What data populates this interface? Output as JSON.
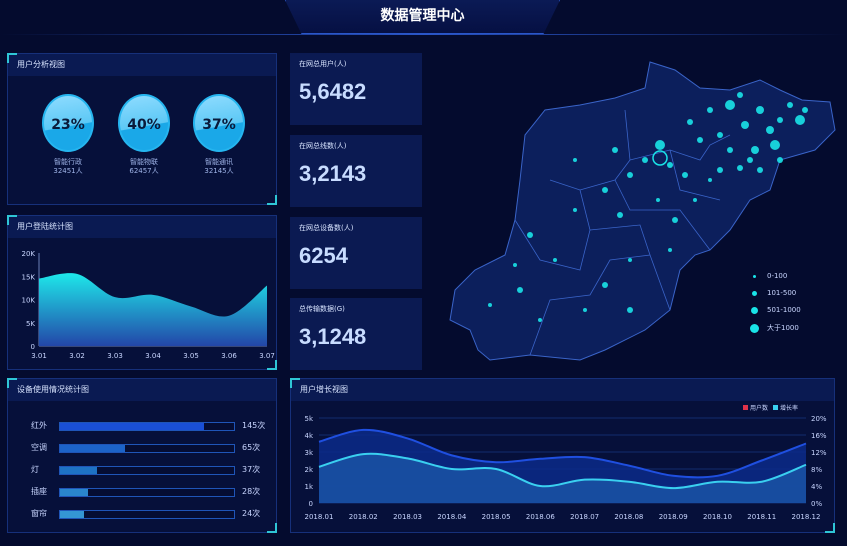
{
  "title": "数据管理中心",
  "user_analysis": {
    "title": "用户分析视图",
    "items": [
      {
        "pct": "23%",
        "name": "智能行政",
        "count": "32451人"
      },
      {
        "pct": "40%",
        "name": "智能物联",
        "count": "62457人"
      },
      {
        "pct": "37%",
        "name": "智能通讯",
        "count": "32145人"
      }
    ]
  },
  "stats": [
    {
      "label": "在网总用户(人)",
      "value": "5,6482"
    },
    {
      "label": "在网总线数(人)",
      "value": "3,2143"
    },
    {
      "label": "在网总设备数(人)",
      "value": "6254"
    },
    {
      "label": "总传输数据(G)",
      "value": "3,1248"
    }
  ],
  "map": {
    "legend": [
      "0-100",
      "101-500",
      "501-1000",
      "大于1000"
    ],
    "accent": "#19e3e8"
  },
  "device_usage": {
    "title": "设备使用情况统计图",
    "max": 175,
    "rows": [
      {
        "name": "红外",
        "value": 145,
        "label": "145次",
        "color": "#1a4fd6"
      },
      {
        "name": "空调",
        "value": 65,
        "label": "65次",
        "color": "#1c63c9"
      },
      {
        "name": "灯",
        "value": 37,
        "label": "37次",
        "color": "#1e72c4"
      },
      {
        "name": "插座",
        "value": 28,
        "label": "28次",
        "color": "#2a86cc"
      },
      {
        "name": "窗帘",
        "value": 24,
        "label": "24次",
        "color": "#3496d4"
      }
    ]
  },
  "chart_data": [
    {
      "type": "area",
      "title": "用户登陆统计图",
      "categories": [
        "3.01",
        "3.02",
        "3.03",
        "3.04",
        "3.05",
        "3.06",
        "3.07"
      ],
      "values": [
        14500,
        15500,
        10500,
        11000,
        8500,
        6500,
        13000
      ],
      "ylim": [
        0,
        20000
      ],
      "yticks": [
        "0",
        "5K",
        "10K",
        "15K",
        "20K"
      ],
      "grid": false
    },
    {
      "type": "line",
      "title": "用户增长视图",
      "categories": [
        "2018.01",
        "2018.02",
        "2018.03",
        "2018.04",
        "2018.05",
        "2018.06",
        "2018.07",
        "2018.08",
        "2018.09",
        "2018.10",
        "2018.11",
        "2018.12"
      ],
      "series": [
        {
          "name": "用户数",
          "axis": "left",
          "color": "#e0334a",
          "values": [
            3600,
            4300,
            3800,
            2800,
            2400,
            2600,
            2700,
            2200,
            1600,
            1600,
            2500,
            3500
          ]
        },
        {
          "name": "增长率",
          "axis": "right",
          "color": "#3ad0f0",
          "values": [
            8.5,
            11.5,
            10.5,
            8,
            8,
            4,
            5.5,
            5,
            3.5,
            5,
            5,
            9
          ]
        }
      ],
      "ylim_left": [
        0,
        5000
      ],
      "yticks_left": [
        "0",
        "1k",
        "2k",
        "3k",
        "4k",
        "5k"
      ],
      "ylim_right": [
        0,
        20
      ],
      "yticks_right": [
        "0%",
        "4%",
        "8%",
        "12%",
        "16%",
        "20%"
      ],
      "legend": "top-right",
      "grid": true
    }
  ]
}
